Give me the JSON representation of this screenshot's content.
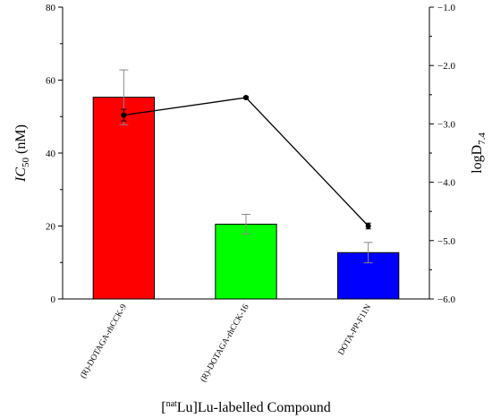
{
  "chart_data": {
    "type": "bar",
    "categories": [
      "(R)-DOTAGA-rhCCK-9",
      "(R)-DOTAGA-rhCCK-16",
      "DOTA-PP-F11N"
    ],
    "series": [
      {
        "type": "bar",
        "axis": "left",
        "values": [
          55.3,
          20.5,
          12.7
        ],
        "errors": [
          7.5,
          2.7,
          2.8
        ],
        "colors": [
          "#ff0000",
          "#00ff00",
          "#0000ff"
        ]
      },
      {
        "type": "line",
        "axis": "right",
        "values": [
          -2.85,
          -2.55,
          -4.75
        ],
        "errors": [
          0.1,
          0.02,
          0.05
        ],
        "color": "#000000"
      }
    ],
    "xlabel": {
      "superscript": "nat",
      "pre": "[",
      "post": "Lu]Lu-labelled Compound"
    },
    "ylabel_left": {
      "main": "IC",
      "subscript": "50",
      "unit": " (nM)"
    },
    "ylabel_right": {
      "main": "logD",
      "subscript": "7.4"
    },
    "ylim_left": [
      0,
      80
    ],
    "ylim_right": [
      -6.0,
      -1.0
    ],
    "yticks_left": [
      "0",
      "20",
      "40",
      "60",
      "80"
    ],
    "yticks_right": [
      "−6.0",
      "−5.0",
      "−4.0",
      "−3.0",
      "−2.0",
      "−1.0"
    ],
    "grid": false,
    "legend": "none"
  }
}
